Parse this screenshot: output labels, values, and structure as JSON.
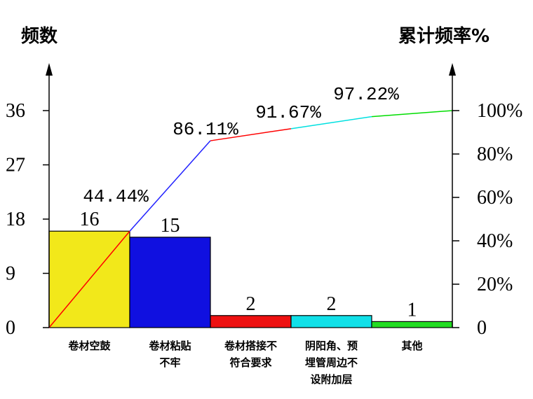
{
  "chart_data": {
    "type": "bar",
    "subtype": "pareto",
    "ylabel_left": "频数",
    "ylabel_right": "累计频率%",
    "categories": [
      [
        "卷材空鼓"
      ],
      [
        "卷材粘贴",
        "不牢"
      ],
      [
        "卷材搭接不",
        "符合要求"
      ],
      [
        "阴阳角、预",
        "埋管周边不",
        "设附加层"
      ],
      [
        "其他"
      ]
    ],
    "values": [
      16,
      15,
      2,
      2,
      1
    ],
    "bar_colors": [
      "#f2e81a",
      "#1010e0",
      "#ee1111",
      "#11e0e8",
      "#22dd22"
    ],
    "cumulative_percent": [
      44.44,
      86.11,
      91.67,
      97.22,
      100
    ],
    "cumulative_labels": [
      "44.44%",
      "86.11%",
      "91.67%",
      "97.22%"
    ],
    "cumulative_line_colors": [
      "#ff0000",
      "#2222ff",
      "#ff0000",
      "#00e0e0",
      "#00dd00"
    ],
    "left_ticks": [
      "0",
      "9",
      "18",
      "27",
      "36"
    ],
    "ylim_left": [
      0,
      36
    ],
    "right_ticks": [
      "0",
      "20%",
      "40%",
      "60%",
      "80%",
      "100%"
    ],
    "ylim_right": [
      0,
      100
    ],
    "grid": false,
    "legend": "none"
  }
}
